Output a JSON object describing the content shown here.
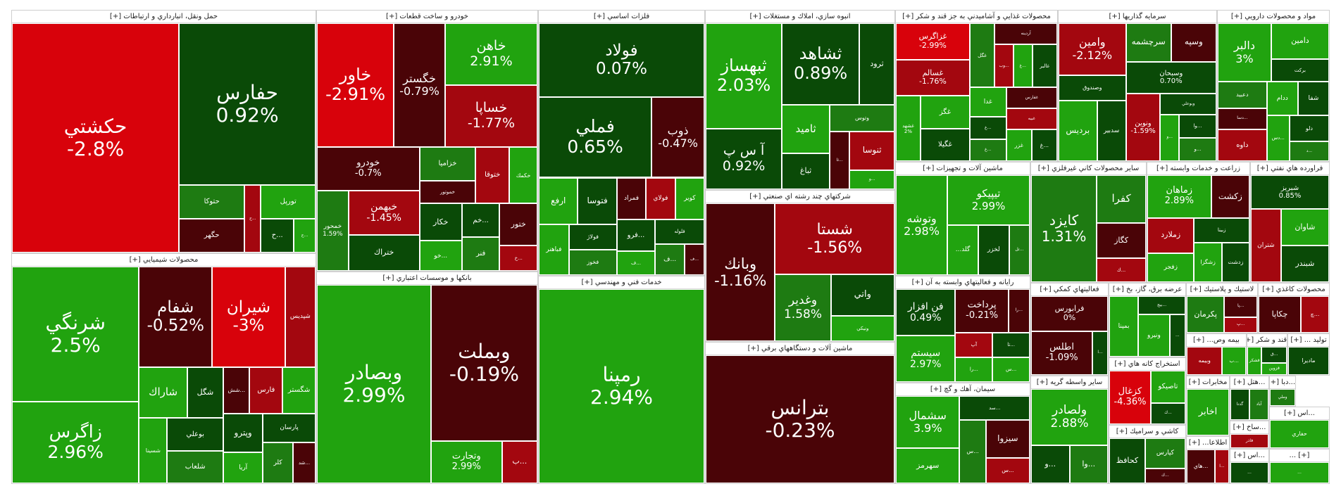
{
  "colors": {
    "dark_red": "#4a0407",
    "red": "#a3070f",
    "bright_red": "#d8020b",
    "dark_green": "#0a4a07",
    "green": "#1e7b12",
    "bright_green": "#21a30f"
  },
  "chart_data": {
    "type": "treemap",
    "title": "",
    "value_label": "percent change",
    "sectors": [
      {
        "name": "حمل ونقل، انبارداري و ارتباطات [+]",
        "stocks": [
          {
            "name": "حكشتي",
            "change": "-2.8%",
            "v": 52
          },
          {
            "name": "حفارس",
            "change": "0.92%",
            "v": 30
          },
          {
            "name": "حتوكا",
            "v": 3
          },
          {
            "name": "حگهر",
            "v": 3
          },
          {
            "name": "ح...",
            "v": 1.5
          },
          {
            "name": "تورپل",
            "v": 2.5
          },
          {
            "name": "ح...",
            "v": 1.5
          },
          {
            "name": "ج...",
            "v": 1
          }
        ]
      },
      {
        "name": "خودرو و ساخت قطعات [+]",
        "stocks": [
          {
            "name": "خاور",
            "change": "-2.91%",
            "v": 15
          },
          {
            "name": "خگستر",
            "change": "-0.79%",
            "v": 10
          },
          {
            "name": "خاهن",
            "change": "2.91%",
            "v": 9
          },
          {
            "name": "خساپا",
            "change": "-1.77%",
            "v": 9
          },
          {
            "name": "خودرو",
            "change": "-0.7%",
            "v": 7
          },
          {
            "name": "خمحور",
            "change": "1.59%",
            "v": 4
          },
          {
            "name": "خبهمن",
            "change": "-1.45%",
            "v": 5
          },
          {
            "name": "ختراك",
            "v": 4
          },
          {
            "name": "خزاميا",
            "v": 3
          },
          {
            "name": "خموتور",
            "v": 2
          },
          {
            "name": "ختوقا",
            "v": 3
          },
          {
            "name": "خكمك",
            "v": 2.5
          },
          {
            "name": "خكار",
            "v": 2.5
          },
          {
            "name": "خو...",
            "v": 2
          },
          {
            "name": "خم...",
            "v": 2
          },
          {
            "name": "فنر",
            "v": 2
          },
          {
            "name": "ختور",
            "v": 2.5
          },
          {
            "name": "خ...",
            "v": 1.5
          }
        ]
      },
      {
        "name": "فلزات اساسي [+]",
        "stocks": [
          {
            "name": "فولاد",
            "change": "0.07%",
            "v": 20
          },
          {
            "name": "فملي",
            "change": "0.65%",
            "v": 15
          },
          {
            "name": "ذوب",
            "change": "-0.47%",
            "v": 7
          },
          {
            "name": "ارفع",
            "v": 3
          },
          {
            "name": "فتوسا",
            "v": 3
          },
          {
            "name": "فباهنر",
            "v": 2.5
          },
          {
            "name": "فولاژ",
            "v": 2
          },
          {
            "name": "فخوز",
            "v": 2
          },
          {
            "name": "فمراد",
            "v": 2
          },
          {
            "name": "فولاي",
            "v": 2
          },
          {
            "name": "كوير",
            "v": 2
          },
          {
            "name": "فرو...",
            "v": 2
          },
          {
            "name": "ف...",
            "v": 1.5
          },
          {
            "name": "فلوله",
            "v": 2
          },
          {
            "name": "ف...",
            "v": 1.5
          },
          {
            "name": "ف...",
            "v": 1
          }
        ]
      },
      {
        "name": "انبوه سازي، املاك و مستغلات [+]",
        "stocks": [
          {
            "name": "ثبهساز",
            "change": "2.03%",
            "v": 14
          },
          {
            "name": "آ س پ",
            "change": "0.92%",
            "v": 8
          },
          {
            "name": "ثشاهد",
            "change": "0.89%",
            "v": 11
          },
          {
            "name": "ثرود",
            "v": 5
          },
          {
            "name": "ثاميد",
            "v": 4
          },
          {
            "name": "ثباغ",
            "v": 3
          },
          {
            "name": "وتوس",
            "v": 3
          },
          {
            "name": "ثا...",
            "v": 2
          },
          {
            "name": "ثنوسا",
            "v": 3
          },
          {
            "name": "و...",
            "v": 1.5
          }
        ]
      },
      {
        "name": "محصولات غذايي و آشاميدني به جز قند و شكر [+]",
        "stocks": [
          {
            "name": "غزاگرس",
            "change": "-2.99%",
            "v": 5
          },
          {
            "name": "غسالم",
            "change": "-1.76%",
            "v": 5
          },
          {
            "name": "غشهد",
            "change": "2%",
            "v": 3
          },
          {
            "name": "غگز",
            "v": 3
          },
          {
            "name": "غگيلا",
            "v": 3
          },
          {
            "name": "غگل",
            "v": 3
          },
          {
            "name": "آردينه",
            "v": 2.5
          },
          {
            "name": "وب...",
            "v": 1.5
          },
          {
            "name": "غ...",
            "v": 1.5
          },
          {
            "name": "غالبر",
            "v": 2
          },
          {
            "name": "غدا",
            "v": 2
          },
          {
            "name": "غ...",
            "v": 1.5
          },
          {
            "name": "غ...",
            "v": 1.5
          },
          {
            "name": "غفارس",
            "v": 2
          },
          {
            "name": "غبيه",
            "v": 2
          },
          {
            "name": "غزر",
            "v": 1.5
          },
          {
            "name": "غ...",
            "v": 1.5
          }
        ]
      },
      {
        "name": "سرمايه گذاريها [+]",
        "stocks": [
          {
            "name": "وامين",
            "change": "-2.12%",
            "v": 6
          },
          {
            "name": "وصندوق",
            "v": 3
          },
          {
            "name": "برديس",
            "v": 4
          },
          {
            "name": "سدبير",
            "v": 3
          },
          {
            "name": "سرچشمه",
            "v": 3
          },
          {
            "name": "وسپه",
            "v": 3
          },
          {
            "name": "وسبحان",
            "change": "0.70%",
            "v": 5
          },
          {
            "name": "ونوين",
            "change": "-1.59%",
            "v": 4
          },
          {
            "name": "وبوعلي",
            "v": 2
          },
          {
            "name": "و...",
            "v": 1.5
          },
          {
            "name": "وا...",
            "v": 1.5
          },
          {
            "name": "و...",
            "v": 1.5
          }
        ]
      },
      {
        "name": "مواد و محصولات دارويي [+]",
        "stocks": [
          {
            "name": "دالبر",
            "change": "3%",
            "v": 6
          },
          {
            "name": "دامين",
            "v": 4
          },
          {
            "name": "بركت",
            "v": 2.5
          },
          {
            "name": "دعبيد",
            "v": 2.5
          },
          {
            "name": "دسا...",
            "v": 2
          },
          {
            "name": "داوه",
            "v": 3
          },
          {
            "name": "ددام",
            "v": 2
          },
          {
            "name": "شفا",
            "v": 2
          },
          {
            "name": "دس...",
            "v": 2
          },
          {
            "name": "دلو",
            "v": 2
          },
          {
            "name": "د...",
            "v": 1.5
          }
        ]
      },
      {
        "name": "محصولات شيميايي [+]",
        "stocks": [
          {
            "name": "شرنگي",
            "change": "2.5%",
            "v": 28
          },
          {
            "name": "زاگرس",
            "change": "2.96%",
            "v": 17
          },
          {
            "name": "شفام",
            "change": "-0.52%",
            "v": 12
          },
          {
            "name": "شيران",
            "change": "-3%",
            "v": 12
          },
          {
            "name": "شپديس",
            "v": 5
          },
          {
            "name": "شاراك",
            "v": 4
          },
          {
            "name": "شگل",
            "v": 3
          },
          {
            "name": "شسينا",
            "v": 3
          },
          {
            "name": "بوعلي",
            "v": 3
          },
          {
            "name": "شلعاب",
            "v": 3
          },
          {
            "name": "شش...",
            "v": 2
          },
          {
            "name": "فارس",
            "v": 2.5
          },
          {
            "name": "شگستر",
            "v": 2.5
          },
          {
            "name": "وپترو",
            "v": 2.5
          },
          {
            "name": "آريا",
            "v": 2
          },
          {
            "name": "پارسان",
            "v": 2.5
          },
          {
            "name": "كلر",
            "v": 2
          },
          {
            "name": "شد...",
            "v": 1.5
          }
        ]
      },
      {
        "name": "بانكها و موسسات اعتباري [+]",
        "stocks": [
          {
            "name": "وبصادر",
            "change": "2.99%",
            "v": 30
          },
          {
            "name": "وبملت",
            "change": "-0.19%",
            "v": 22
          },
          {
            "name": "وتجارت",
            "change": "2.99%",
            "v": 4
          },
          {
            "name": "ب...",
            "v": 2
          }
        ]
      },
      {
        "name": "خدمات فني و مهندسي [+]",
        "stocks": [
          {
            "name": "رمپنا",
            "change": "2.94%",
            "v": 30
          }
        ]
      },
      {
        "name": "شركتهاي چند رشته اي صنعتي [+]",
        "stocks": [
          {
            "name": "وبانك",
            "change": "-1.16%",
            "v": 18
          },
          {
            "name": "شستا",
            "change": "-1.56%",
            "v": 16
          },
          {
            "name": "وغدير",
            "change": "1.58%",
            "v": 7
          },
          {
            "name": "واتي",
            "v": 5
          },
          {
            "name": "ونيكي",
            "v": 3
          }
        ]
      },
      {
        "name": "ماشين آلات و دستگاههاي برقي [+]",
        "stocks": [
          {
            "name": "بترانس",
            "change": "-0.23%",
            "v": 30
          }
        ]
      },
      {
        "name": "ماشين آلات و تجهيزات [+]",
        "stocks": [
          {
            "name": "وتوشه",
            "change": "2.98%",
            "v": 10
          },
          {
            "name": "تيپيكو",
            "change": "2.99%",
            "v": 8
          },
          {
            "name": "...گلد",
            "v": 3
          },
          {
            "name": "لخزر",
            "v": 3
          },
          {
            "name": "تل...",
            "v": 2
          }
        ]
      },
      {
        "name": "سيمان، آهك و گچ [+]",
        "stocks": [
          {
            "name": "سشمال",
            "change": "3.9%",
            "v": 6
          },
          {
            "name": "سهرمز",
            "v": 4
          },
          {
            "name": "سد...",
            "v": 3
          },
          {
            "name": "س...",
            "v": 3
          },
          {
            "name": "سيزوا",
            "v": 3
          },
          {
            "name": "س...",
            "v": 2
          }
        ]
      },
      {
        "name": "رايانه و فعاليتهاي وابسته به آن [+]",
        "stocks": [
          {
            "name": "فن افزار",
            "change": "0.49%",
            "v": 6
          },
          {
            "name": "سيستم",
            "change": "2.97%",
            "v": 6
          },
          {
            "name": "پرداخت",
            "change": "-0.21%",
            "v": 5
          },
          {
            "name": "را...",
            "v": 2
          },
          {
            "name": "آپ",
            "v": 2
          },
          {
            "name": "را...",
            "v": 2
          },
          {
            "name": "تا...",
            "v": 2
          },
          {
            "name": "س...",
            "v": 2
          }
        ]
      },
      {
        "name": "ساير محصولات كاني غيرفلزي [+]",
        "stocks": [
          {
            "name": "كايزد",
            "change": "1.31%",
            "v": 12
          },
          {
            "name": "كفرا",
            "v": 4
          },
          {
            "name": "كگاز",
            "v": 3
          },
          {
            "name": "ك...",
            "v": 2
          }
        ]
      },
      {
        "name": "زراعت و خدمات وابسته [+]",
        "stocks": [
          {
            "name": "زماهان",
            "change": "2.89%",
            "v": 5
          },
          {
            "name": "زكشت",
            "v": 3
          },
          {
            "name": "زملارد",
            "v": 3
          },
          {
            "name": "زفجر",
            "v": 2.5
          },
          {
            "name": "زبينا",
            "v": 2.5
          },
          {
            "name": "زشگزا",
            "v": 2
          },
          {
            "name": "زدشت",
            "v": 2
          }
        ]
      },
      {
        "name": "فراورده هاي نفتي [+]",
        "stocks": [
          {
            "name": "شبريز",
            "change": "0.85%",
            "v": 6
          },
          {
            "name": "شتران",
            "v": 5
          },
          {
            "name": "شاوان",
            "v": 4
          },
          {
            "name": "شبندر",
            "v": 4
          }
        ]
      },
      {
        "name": "فعاليتهاي كمكي [+]",
        "stocks": [
          {
            "name": "فرابورس",
            "change": "0%",
            "v": 8
          },
          {
            "name": "اطلس",
            "change": "-1.09%",
            "v": 8
          },
          {
            "name": "ا...",
            "v": 2
          }
        ]
      },
      {
        "name": "عرضه برق، گاز، بخ [+]",
        "stocks": [
          {
            "name": "بمپنا",
            "v": 4
          },
          {
            "name": "بيج...",
            "v": 2
          },
          {
            "name": "ونيرو",
            "v": 3
          },
          {
            "name": "...",
            "v": 1.5
          }
        ]
      },
      {
        "name": "استخراج كانه هاي [+]",
        "stocks": [
          {
            "name": "كزغال",
            "change": "-4.36%",
            "v": 6
          },
          {
            "name": "تاصيكو",
            "v": 3
          },
          {
            "name": "ك...",
            "v": 2
          }
        ]
      },
      {
        "name": "ساير واسطه گريه [+]",
        "stocks": [
          {
            "name": "ولصادر",
            "change": "2.88%",
            "v": 6
          },
          {
            "name": "و...",
            "v": 2
          },
          {
            "name": "وا...",
            "v": 2
          }
        ]
      },
      {
        "name": "كاشي و سراميك [+]",
        "stocks": [
          {
            "name": "كحافظ",
            "v": 4
          },
          {
            "name": "كپارس",
            "v": 3
          },
          {
            "name": "ك...",
            "v": 1.5
          }
        ]
      },
      {
        "name": "لاستيك و پلاستيك [+]",
        "stocks": [
          {
            "name": "پكرمان",
            "v": 4
          },
          {
            "name": "پا...",
            "v": 2
          },
          {
            "name": "پ...",
            "v": 1.5
          }
        ]
      },
      {
        "name": "محصولات كاغذي [+]",
        "stocks": [
          {
            "name": "چكاپا",
            "v": 3
          },
          {
            "name": "چ...",
            "v": 2
          }
        ]
      },
      {
        "name": "بيمه وص... [+]",
        "stocks": [
          {
            "name": "وبيمه",
            "v": 3
          },
          {
            "name": "ب...",
            "v": 2
          }
        ]
      },
      {
        "name": "قند و شكر [+]",
        "stocks": [
          {
            "name": "قشكر",
            "v": 2
          },
          {
            "name": "ق...",
            "v": 2
          },
          {
            "name": "قزوين",
            "v": 1.5
          }
        ]
      },
      {
        "name": "تولید ... [+]",
        "stocks": [
          {
            "name": "ماديرا",
            "v": 3
          }
        ]
      },
      {
        "name": "مخابرات [+]",
        "stocks": [
          {
            "name": "اخابر",
            "v": 4
          }
        ]
      },
      {
        "name": "...هتل [+]",
        "stocks": [
          {
            "name": "گدنا",
            "v": 2
          },
          {
            "name": "آباد",
            "v": 2
          }
        ]
      },
      {
        "name": "...دبا [+]",
        "stocks": [
          {
            "name": "وملي",
            "v": 3
          }
        ]
      },
      {
        "name": "اطلاعا... [+]",
        "stocks": [
          {
            "name": "هاي...",
            "v": 2
          },
          {
            "name": "ا...",
            "v": 1
          }
        ]
      },
      {
        "name": "...ساخ [+]",
        "stocks": [
          {
            "name": "فاذر",
            "v": 2
          }
        ]
      },
      {
        "name": "...اس [+]",
        "stocks": [
          {
            "name": "حفاري",
            "v": 2
          }
        ]
      },
      {
        "name": "...اس [+]",
        "stocks": [
          {
            "name": "...",
            "v": 1
          }
        ]
      },
      {
        "name": "[+] ...",
        "stocks": [
          {
            "name": "...",
            "v": 1
          }
        ]
      }
    ]
  }
}
